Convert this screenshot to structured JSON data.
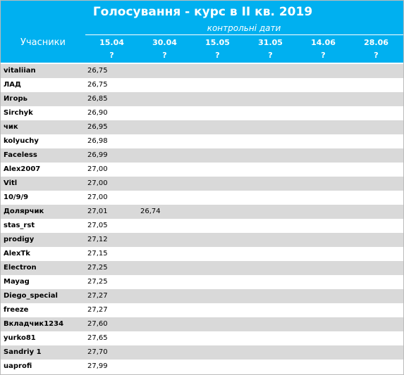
{
  "header": {
    "title": "Голосування - курс в II кв. 2019",
    "subtitle": "контрольні дати",
    "participants": "Учасники",
    "dates": [
      "15.04",
      "30.04",
      "15.05",
      "31.05",
      "14.06",
      "28.06"
    ],
    "marks": [
      "?",
      "?",
      "?",
      "?",
      "?",
      "?"
    ]
  },
  "table": {
    "rows": [
      [
        "vitaliian",
        "26,75"
      ],
      [
        "ЛАД",
        "26,75"
      ],
      [
        "Игорь",
        "26,85"
      ],
      [
        "Sirchyk",
        "26,90"
      ],
      [
        "чик",
        "26,95"
      ],
      [
        "kolyuchy",
        "26,98"
      ],
      [
        "Faceless",
        "26,99"
      ],
      [
        "Alex2007",
        "27,00"
      ],
      [
        "Vitl",
        "27,00"
      ],
      [
        "10/9/9",
        "27,00"
      ],
      [
        "Долярчик",
        "27,01",
        "26,74"
      ],
      [
        "stas_rst",
        "27,05"
      ],
      [
        "prodigy",
        "27,12"
      ],
      [
        "AlexTk",
        "27,15"
      ],
      [
        "Electron",
        "27,25"
      ],
      [
        "Mayag",
        "27,25"
      ],
      [
        "Diego_special",
        "27,27"
      ],
      [
        "freeze",
        "27,27"
      ],
      [
        "Вкладчик1234",
        "27,60"
      ],
      [
        "yurko81",
        "27,65"
      ],
      [
        "Sandriy 1",
        "27,70"
      ],
      [
        "uaprofi",
        "27,99"
      ]
    ]
  }
}
